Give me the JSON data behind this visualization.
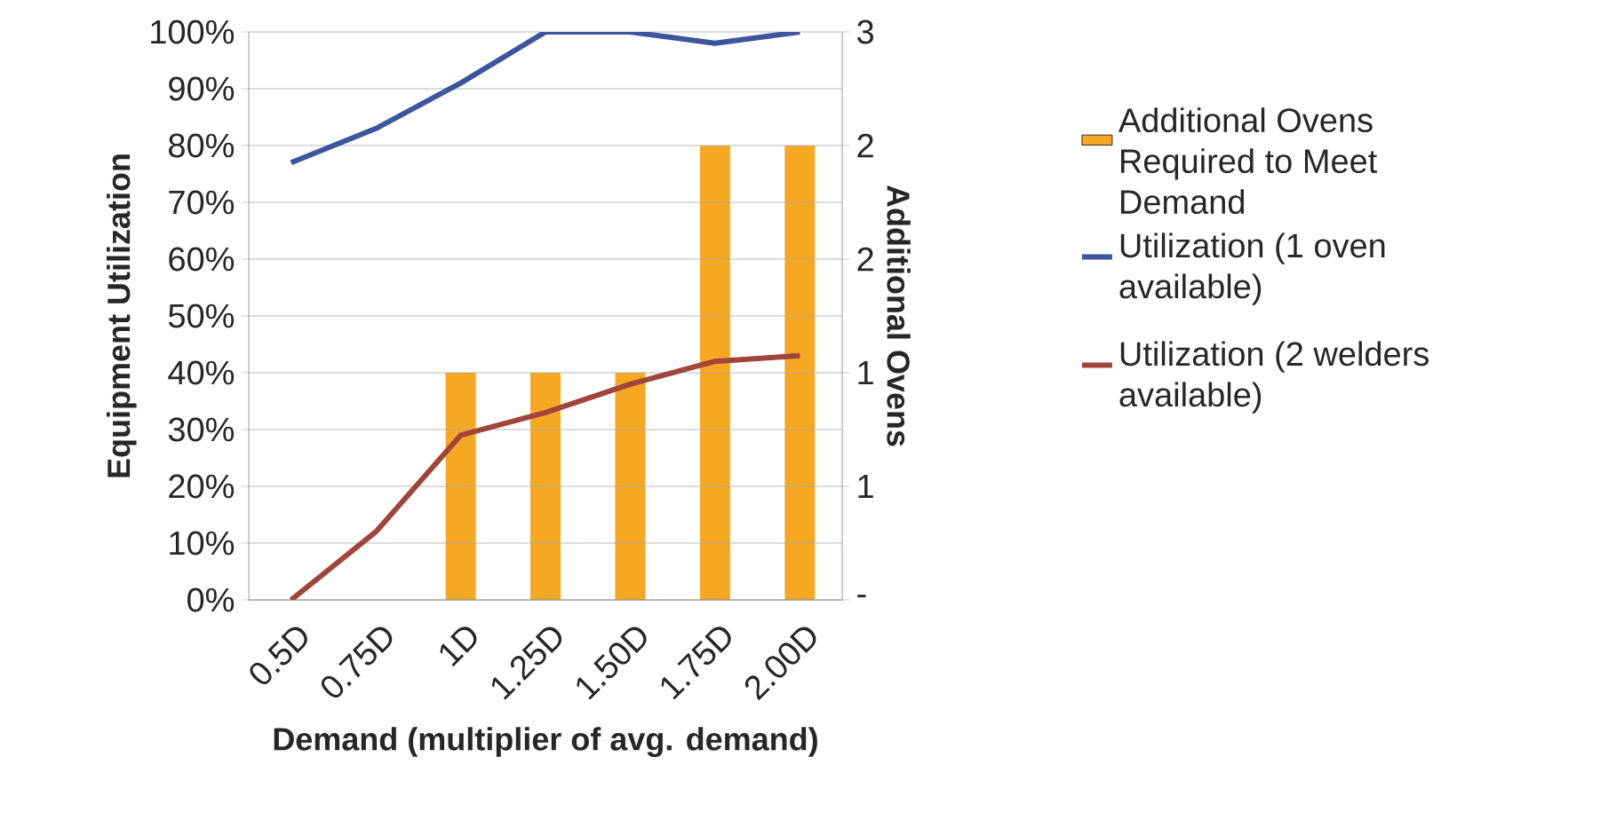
{
  "chart_data": {
    "type": "bar",
    "categories": [
      "0.5D",
      "0.75D",
      "1D",
      "1.25D",
      "1.50D",
      "1.75D",
      "2.00D"
    ],
    "xlabel": "Demand (multiplier of avg. demand)",
    "ylabel": "Equipment Utilization",
    "y2label": "Additional Ovens",
    "ylim": [
      0,
      100
    ],
    "yticks": [
      {
        "value": 0,
        "label": "0%"
      },
      {
        "value": 10,
        "label": "10%"
      },
      {
        "value": 20,
        "label": "20%"
      },
      {
        "value": 30,
        "label": "30%"
      },
      {
        "value": 40,
        "label": "40%"
      },
      {
        "value": 50,
        "label": "50%"
      },
      {
        "value": 60,
        "label": "60%"
      },
      {
        "value": 70,
        "label": "70%"
      },
      {
        "value": 80,
        "label": "80%"
      },
      {
        "value": 90,
        "label": "90%"
      },
      {
        "value": 100,
        "label": "100%"
      }
    ],
    "y2lim": [
      0,
      2.5
    ],
    "y2ticks": [
      {
        "value": 0,
        "label": "-"
      },
      {
        "value": 0.5,
        "label": "1"
      },
      {
        "value": 1,
        "label": "1"
      },
      {
        "value": 1.5,
        "label": "2"
      },
      {
        "value": 2,
        "label": "2"
      },
      {
        "value": 2.5,
        "label": "3"
      }
    ],
    "grid": "y",
    "legend": "right",
    "series": [
      {
        "name": "Additional Ovens Required to Meet Demand",
        "axis": "y2",
        "color": "#f7a823",
        "values": [
          0,
          0,
          1,
          1,
          1,
          2,
          2
        ]
      },
      {
        "name": "Utilization (1 oven available)",
        "type": "line",
        "color": "#3b559e",
        "values": [
          77,
          83,
          91,
          100,
          100,
          98,
          100
        ]
      },
      {
        "name": "Utilization (2 welders available)",
        "type": "line",
        "color": "#a0453a",
        "values": [
          0,
          12,
          29,
          33,
          38,
          42,
          43
        ]
      }
    ]
  }
}
